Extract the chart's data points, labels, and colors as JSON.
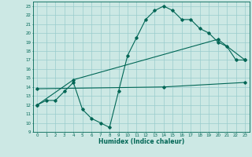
{
  "xlabel": "Humidex (Indice chaleur)",
  "bg_color": "#cce8e4",
  "grid_color": "#99cccc",
  "line_color": "#006655",
  "xlim": [
    -0.5,
    23.5
  ],
  "ylim": [
    9,
    23.5
  ],
  "xticks": [
    0,
    1,
    2,
    3,
    4,
    5,
    6,
    7,
    8,
    9,
    10,
    11,
    12,
    13,
    14,
    15,
    16,
    17,
    18,
    19,
    20,
    21,
    22,
    23
  ],
  "yticks": [
    9,
    10,
    11,
    12,
    13,
    14,
    15,
    16,
    17,
    18,
    19,
    20,
    21,
    22,
    23
  ],
  "line1_x": [
    0,
    1,
    2,
    3,
    4,
    5,
    6,
    7,
    8,
    9,
    10,
    11,
    12,
    13,
    14,
    15,
    16,
    17,
    18,
    19,
    20,
    21,
    22,
    23
  ],
  "line1_y": [
    12,
    12.5,
    12.5,
    13.5,
    14.5,
    11.5,
    10.5,
    10.0,
    9.5,
    13.5,
    17.5,
    19.5,
    21.5,
    22.5,
    23.0,
    22.5,
    21.5,
    21.5,
    20.5,
    20.0,
    19.0,
    18.5,
    17.0,
    17.0
  ],
  "line2_x": [
    0,
    4,
    20,
    23
  ],
  "line2_y": [
    12.0,
    14.8,
    19.3,
    17.0
  ],
  "line3_x": [
    0,
    14,
    23
  ],
  "line3_y": [
    13.8,
    14.0,
    14.5
  ]
}
